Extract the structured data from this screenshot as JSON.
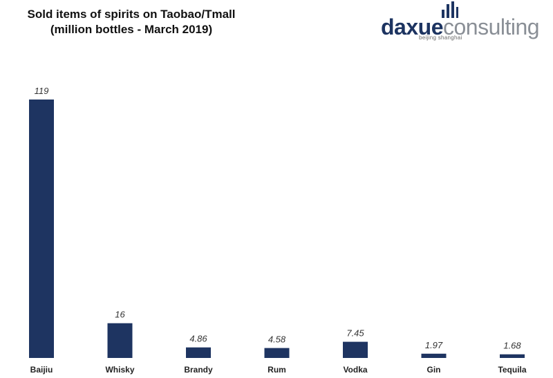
{
  "logo": {
    "text_a": "daxue",
    "text_b": "consulting",
    "tagline": "beijing shanghai"
  },
  "colors": {
    "bar": "#1e3461",
    "logo_dark": "#1d3461",
    "logo_gray": "#8a8f96"
  },
  "chart_data": {
    "type": "bar",
    "title_line1": "Sold items of spirits on Taobao/Tmall",
    "title_line2": "(million bottles - March 2019)",
    "categories": [
      "Baijiu",
      "Whisky",
      "Brandy",
      "Rum",
      "Vodka",
      "Gin",
      "Tequila"
    ],
    "values": [
      119,
      16,
      4.86,
      4.58,
      7.45,
      1.97,
      1.68
    ],
    "value_labels": [
      "119",
      "16",
      "4.86",
      "4.58",
      "7.45",
      "1.97",
      "1.68"
    ],
    "xlabel": "",
    "ylabel": "",
    "ylim": [
      0,
      125
    ],
    "grid": false,
    "legend": "none"
  }
}
